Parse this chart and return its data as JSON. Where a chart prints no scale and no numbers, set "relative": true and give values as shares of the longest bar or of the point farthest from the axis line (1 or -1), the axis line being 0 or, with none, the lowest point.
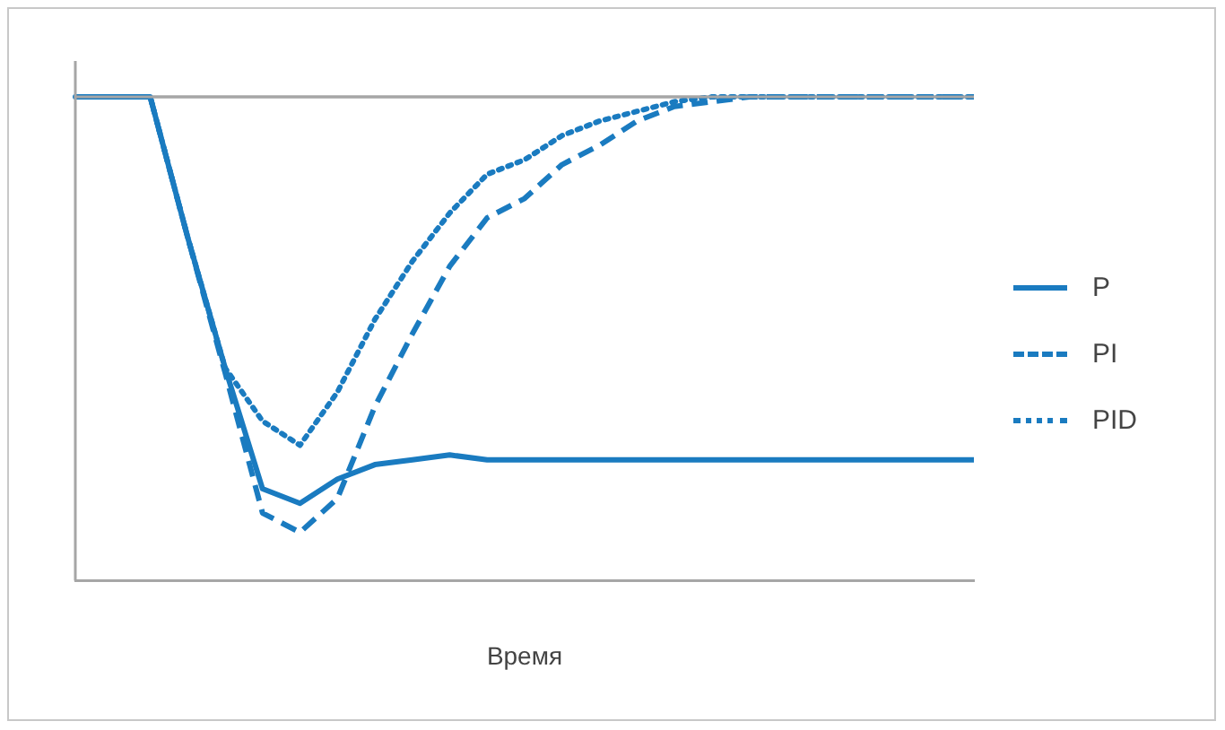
{
  "chart_data": {
    "type": "line",
    "relative": true,
    "xlabel": "Время",
    "categories": [
      null,
      null,
      null,
      null,
      null,
      null,
      null,
      null,
      null,
      null,
      null,
      null,
      null,
      null,
      null,
      null,
      null,
      null,
      null,
      null,
      null,
      null,
      null,
      null,
      null
    ],
    "series": [
      {
        "name": "P",
        "color": "#1a7bc0",
        "line_style": "solid",
        "values": [
          1,
          1,
          1,
          0.71,
          0.44,
          0.19,
          0.16,
          0.21,
          0.24,
          0.25,
          0.26,
          0.25,
          0.25,
          0.25,
          0.25,
          0.25,
          0.25,
          0.25,
          0.25,
          0.25,
          0.25,
          0.25,
          0.25,
          0.25,
          0.25
        ]
      },
      {
        "name": "PI",
        "color": "#1a7bc0",
        "line_style": "dashed",
        "values": [
          1,
          1,
          1,
          0.71,
          0.43,
          0.14,
          0.1,
          0.17,
          0.36,
          0.51,
          0.65,
          0.75,
          0.79,
          0.86,
          0.9,
          0.95,
          0.98,
          0.99,
          1,
          1,
          1,
          1,
          1,
          1,
          1
        ]
      },
      {
        "name": "PID",
        "color": "#1a7bc0",
        "line_style": "dotted",
        "values": [
          1,
          1,
          1,
          0.71,
          0.44,
          0.33,
          0.28,
          0.39,
          0.54,
          0.66,
          0.76,
          0.84,
          0.87,
          0.92,
          0.95,
          0.97,
          0.99,
          1,
          1,
          1,
          1,
          1,
          1,
          1,
          1
        ]
      }
    ],
    "ref_lines": [
      {
        "axis": "y",
        "value": 1,
        "color": "#a6a6a6"
      }
    ],
    "marker": "none",
    "grid": false,
    "legend": "right"
  }
}
